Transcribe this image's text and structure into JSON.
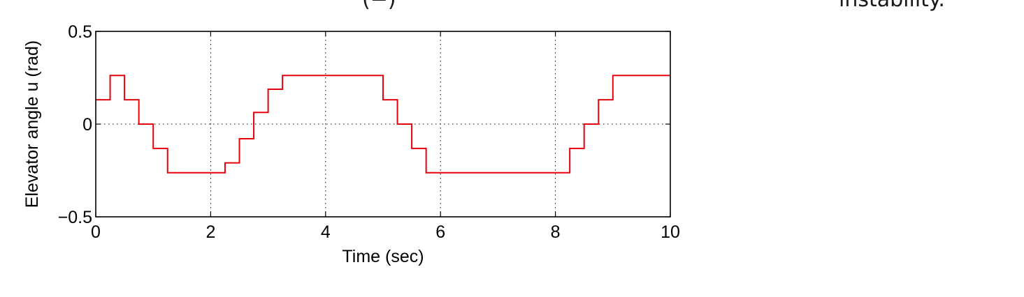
{
  "page": {
    "cropped_text_left": "(−)",
    "cropped_text_right": "instability."
  },
  "chart_data": {
    "type": "line",
    "step": true,
    "xlabel": "Time (sec)",
    "ylabel": "Elevator angle u (rad)",
    "xlim": [
      0,
      10
    ],
    "ylim": [
      -0.5,
      0.5
    ],
    "xticks": [
      0,
      2,
      4,
      6,
      8,
      10
    ],
    "xtick_labels": [
      "0",
      "2",
      "4",
      "6",
      "8",
      "10"
    ],
    "yticks": [
      -0.5,
      0,
      0.5
    ],
    "ytick_labels": [
      "−0.5",
      "0",
      "0.5"
    ],
    "grid": true,
    "grid_style": "dotted",
    "series": [
      {
        "color": "#e8000b",
        "x": [
          0,
          0.25,
          0.5,
          0.75,
          1.0,
          1.25,
          1.5,
          1.75,
          2.0,
          2.25,
          2.5,
          2.75,
          3.0,
          3.25,
          3.5,
          3.75,
          4.0,
          4.25,
          4.5,
          4.75,
          5.0,
          5.25,
          5.5,
          5.75,
          6.0,
          6.25,
          6.5,
          6.75,
          7.0,
          7.25,
          7.5,
          7.75,
          8.0,
          8.25,
          8.5,
          8.75,
          9.0,
          9.25,
          9.5,
          9.75,
          10.0
        ],
        "y": [
          0.131,
          0.262,
          0.131,
          0,
          -0.131,
          -0.262,
          -0.262,
          -0.262,
          -0.262,
          -0.209,
          -0.079,
          0.063,
          0.188,
          0.262,
          0.262,
          0.262,
          0.262,
          0.262,
          0.262,
          0.262,
          0.131,
          0,
          -0.131,
          -0.262,
          -0.262,
          -0.262,
          -0.262,
          -0.262,
          -0.262,
          -0.262,
          -0.262,
          -0.262,
          -0.262,
          -0.131,
          0,
          0.131,
          0.262,
          0.262,
          0.262,
          0.262,
          0.262
        ]
      }
    ]
  }
}
